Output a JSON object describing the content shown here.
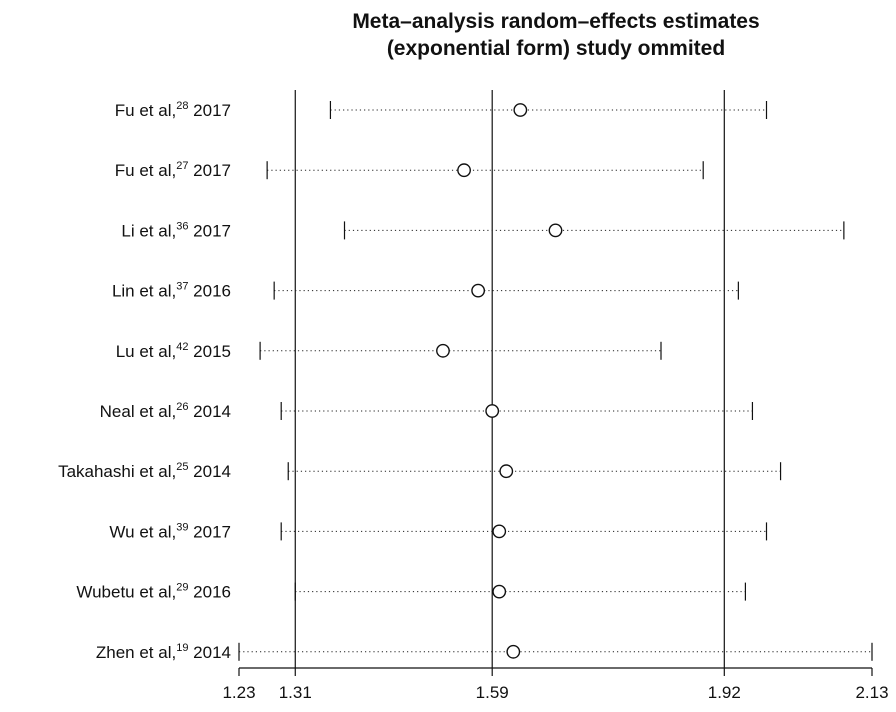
{
  "chart_data": {
    "type": "forest",
    "title": [
      "Meta–analysis random–effects estimates",
      "(exponential form) study ommited"
    ],
    "xlabel": "",
    "ylabel": "",
    "xlim": [
      1.23,
      2.13
    ],
    "xticks": [
      1.23,
      1.31,
      1.59,
      1.92,
      2.13
    ],
    "xtick_labels": [
      "1.23",
      "1.31",
      "1.59",
      "1.92",
      "2.13"
    ],
    "reference_lines": [
      1.31,
      1.59,
      1.92
    ],
    "studies": [
      {
        "name": "Fu et al,",
        "ref": "28",
        "year": "2017",
        "estimate": 1.63,
        "lower": 1.36,
        "upper": 1.98
      },
      {
        "name": "Fu et al,",
        "ref": "27",
        "year": "2017",
        "estimate": 1.55,
        "lower": 1.27,
        "upper": 1.89
      },
      {
        "name": "Li et al,",
        "ref": "36",
        "year": "2017",
        "estimate": 1.68,
        "lower": 1.38,
        "upper": 2.09
      },
      {
        "name": "Lin et al,",
        "ref": "37",
        "year": "2016",
        "estimate": 1.57,
        "lower": 1.28,
        "upper": 1.94
      },
      {
        "name": "Lu et al,",
        "ref": "42",
        "year": "2015",
        "estimate": 1.52,
        "lower": 1.26,
        "upper": 1.83
      },
      {
        "name": "Neal et al,",
        "ref": "26",
        "year": "2014",
        "estimate": 1.59,
        "lower": 1.29,
        "upper": 1.96
      },
      {
        "name": "Takahashi et al,",
        "ref": "25",
        "year": "2014",
        "estimate": 1.61,
        "lower": 1.3,
        "upper": 2.0
      },
      {
        "name": "Wu et al,",
        "ref": "39",
        "year": "2017",
        "estimate": 1.6,
        "lower": 1.29,
        "upper": 1.98
      },
      {
        "name": "Wubetu et al,",
        "ref": "29",
        "year": "2016",
        "estimate": 1.6,
        "lower": 1.31,
        "upper": 1.95
      },
      {
        "name": "Zhen et al,",
        "ref": "19",
        "year": "2014",
        "estimate": 1.62,
        "lower": 1.23,
        "upper": 2.13
      }
    ]
  }
}
